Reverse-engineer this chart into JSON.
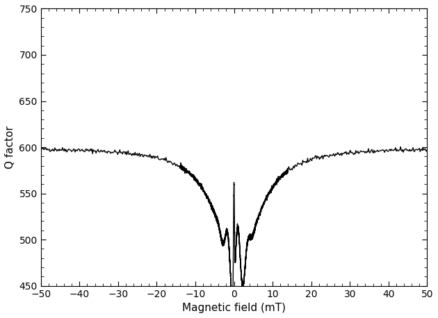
{
  "xlabel": "Magnetic field (mT)",
  "ylabel": "Q factor",
  "xlim": [
    -50,
    50
  ],
  "ylim": [
    450,
    750
  ],
  "xticks": [
    -50,
    -40,
    -30,
    -20,
    -10,
    0,
    10,
    20,
    30,
    40,
    50
  ],
  "yticks": [
    450,
    500,
    550,
    600,
    650,
    700,
    750
  ],
  "line_color": "#000000",
  "line_width": 1.0,
  "background_color": "#ffffff",
  "fig_width": 6.3,
  "fig_height": 4.58,
  "dpi": 100
}
